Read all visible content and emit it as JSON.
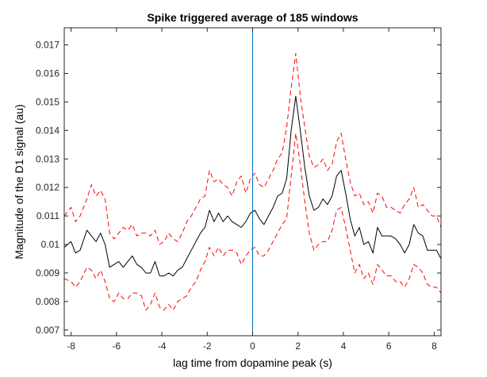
{
  "chart_data": {
    "type": "line",
    "title": "Spike triggered average of 185 windows",
    "xlabel": "lag time from dopamine peak (s)",
    "ylabel": "Magnitude of the D1 signal (au)",
    "xlim": [
      -8.3,
      8.3
    ],
    "ylim": [
      0.0068,
      0.0176
    ],
    "xticks": [
      -8,
      -6,
      -4,
      -2,
      0,
      2,
      4,
      6,
      8
    ],
    "xtick_labels": [
      "-8",
      "-6",
      "-4",
      "-2",
      "0",
      "2",
      "4",
      "6",
      "8"
    ],
    "yticks": [
      0.007,
      0.008,
      0.009,
      0.01,
      0.011,
      0.012,
      0.013,
      0.014,
      0.015,
      0.016,
      0.017
    ],
    "ytick_labels": [
      "0.007",
      "0.008",
      "0.009",
      "0.01",
      "0.011",
      "0.012",
      "0.013",
      "0.014",
      "0.015",
      "0.016",
      "0.017"
    ],
    "grid": false,
    "legend": "none",
    "vline": {
      "x": 0,
      "color": "#0072BD"
    },
    "series": [
      {
        "style": "solid",
        "color": "#000000",
        "x": [
          -8.3,
          -8.0,
          -7.8,
          -7.6,
          -7.3,
          -7.1,
          -6.9,
          -6.7,
          -6.5,
          -6.3,
          -6.1,
          -5.9,
          -5.7,
          -5.5,
          -5.3,
          -5.1,
          -4.9,
          -4.7,
          -4.5,
          -4.3,
          -4.1,
          -3.9,
          -3.7,
          -3.5,
          -3.3,
          -3.1,
          -2.9,
          -2.7,
          -2.5,
          -2.3,
          -2.1,
          -1.9,
          -1.7,
          -1.5,
          -1.3,
          -1.1,
          -0.9,
          -0.7,
          -0.5,
          -0.3,
          -0.1,
          0.1,
          0.3,
          0.5,
          0.7,
          0.9,
          1.1,
          1.3,
          1.5,
          1.7,
          1.9,
          2.1,
          2.3,
          2.5,
          2.7,
          2.9,
          3.1,
          3.3,
          3.5,
          3.7,
          3.9,
          4.1,
          4.3,
          4.5,
          4.7,
          4.9,
          5.1,
          5.3,
          5.5,
          5.7,
          5.9,
          6.1,
          6.3,
          6.5,
          6.7,
          6.9,
          7.1,
          7.3,
          7.5,
          7.7,
          7.9,
          8.1,
          8.3
        ],
        "y": [
          0.0099,
          0.0101,
          0.0097,
          0.0098,
          0.0105,
          0.0103,
          0.0101,
          0.0104,
          0.01,
          0.0092,
          0.0093,
          0.0094,
          0.0092,
          0.0094,
          0.0096,
          0.0093,
          0.0092,
          0.009,
          0.009,
          0.0094,
          0.0089,
          0.0089,
          0.009,
          0.0089,
          0.0091,
          0.0092,
          0.0095,
          0.0098,
          0.0101,
          0.0104,
          0.0106,
          0.0112,
          0.0108,
          0.0111,
          0.0108,
          0.011,
          0.0108,
          0.0107,
          0.0106,
          0.0108,
          0.0111,
          0.0112,
          0.0109,
          0.0107,
          0.011,
          0.0113,
          0.0117,
          0.0118,
          0.0123,
          0.014,
          0.0152,
          0.014,
          0.0127,
          0.0117,
          0.0112,
          0.0113,
          0.0116,
          0.0114,
          0.0117,
          0.0124,
          0.0126,
          0.0118,
          0.0109,
          0.0103,
          0.0106,
          0.01,
          0.0101,
          0.0097,
          0.0106,
          0.0103,
          0.0103,
          0.0103,
          0.0102,
          0.01,
          0.0097,
          0.01,
          0.0107,
          0.0104,
          0.0103,
          0.0098,
          0.0098,
          0.0098,
          0.0095
        ]
      },
      {
        "style": "dashed",
        "color": "#FF0000",
        "x": [
          -8.3,
          -8.0,
          -7.8,
          -7.6,
          -7.3,
          -7.1,
          -6.9,
          -6.7,
          -6.5,
          -6.3,
          -6.1,
          -5.9,
          -5.7,
          -5.5,
          -5.3,
          -5.1,
          -4.9,
          -4.7,
          -4.5,
          -4.3,
          -4.1,
          -3.9,
          -3.7,
          -3.5,
          -3.3,
          -3.1,
          -2.9,
          -2.7,
          -2.5,
          -2.3,
          -2.1,
          -1.9,
          -1.7,
          -1.5,
          -1.3,
          -1.1,
          -0.9,
          -0.7,
          -0.5,
          -0.3,
          -0.1,
          0.1,
          0.3,
          0.5,
          0.7,
          0.9,
          1.1,
          1.3,
          1.5,
          1.7,
          1.9,
          2.1,
          2.3,
          2.5,
          2.7,
          2.9,
          3.1,
          3.3,
          3.5,
          3.7,
          3.9,
          4.1,
          4.3,
          4.5,
          4.7,
          4.9,
          5.1,
          5.3,
          5.5,
          5.7,
          5.9,
          6.1,
          6.3,
          6.5,
          6.7,
          6.9,
          7.1,
          7.3,
          7.5,
          7.7,
          7.9,
          8.1,
          8.3
        ],
        "y": [
          0.011,
          0.0113,
          0.0108,
          0.011,
          0.0116,
          0.0121,
          0.0117,
          0.0119,
          0.0116,
          0.0104,
          0.0102,
          0.0104,
          0.0106,
          0.0105,
          0.0107,
          0.0103,
          0.0104,
          0.0104,
          0.0103,
          0.0105,
          0.01,
          0.0101,
          0.0104,
          0.0102,
          0.0101,
          0.0104,
          0.0108,
          0.011,
          0.0113,
          0.0116,
          0.0117,
          0.0126,
          0.0122,
          0.0123,
          0.0121,
          0.012,
          0.0117,
          0.0122,
          0.0124,
          0.0118,
          0.0123,
          0.0125,
          0.0121,
          0.012,
          0.0123,
          0.0126,
          0.013,
          0.0132,
          0.0141,
          0.0155,
          0.0167,
          0.0152,
          0.0141,
          0.0131,
          0.0127,
          0.0128,
          0.013,
          0.0126,
          0.0128,
          0.0136,
          0.0139,
          0.013,
          0.0122,
          0.0117,
          0.0118,
          0.0114,
          0.0115,
          0.0111,
          0.0118,
          0.0117,
          0.0113,
          0.0113,
          0.0112,
          0.0111,
          0.0114,
          0.0116,
          0.012,
          0.0113,
          0.0114,
          0.0112,
          0.011,
          0.011,
          0.0106
        ]
      },
      {
        "style": "dashed",
        "color": "#FF0000",
        "x": [
          -8.3,
          -8.0,
          -7.8,
          -7.6,
          -7.3,
          -7.1,
          -6.9,
          -6.7,
          -6.5,
          -6.3,
          -6.1,
          -5.9,
          -5.7,
          -5.5,
          -5.3,
          -5.1,
          -4.9,
          -4.7,
          -4.5,
          -4.3,
          -4.1,
          -3.9,
          -3.7,
          -3.5,
          -3.3,
          -3.1,
          -2.9,
          -2.7,
          -2.5,
          -2.3,
          -2.1,
          -1.9,
          -1.7,
          -1.5,
          -1.3,
          -1.1,
          -0.9,
          -0.7,
          -0.5,
          -0.3,
          -0.1,
          0.1,
          0.3,
          0.5,
          0.7,
          0.9,
          1.1,
          1.3,
          1.5,
          1.7,
          1.9,
          2.1,
          2.3,
          2.5,
          2.7,
          2.9,
          3.1,
          3.3,
          3.5,
          3.7,
          3.9,
          4.1,
          4.3,
          4.5,
          4.7,
          4.9,
          5.1,
          5.3,
          5.5,
          5.7,
          5.9,
          6.1,
          6.3,
          6.5,
          6.7,
          6.9,
          7.1,
          7.3,
          7.5,
          7.7,
          7.9,
          8.1,
          8.3
        ],
        "y": [
          0.0088,
          0.0087,
          0.0085,
          0.0087,
          0.0092,
          0.0091,
          0.0088,
          0.0091,
          0.0087,
          0.0081,
          0.008,
          0.0083,
          0.0081,
          0.0081,
          0.0083,
          0.0083,
          0.0082,
          0.0077,
          0.0079,
          0.0083,
          0.0078,
          0.0077,
          0.0079,
          0.0077,
          0.008,
          0.0081,
          0.0082,
          0.0085,
          0.0087,
          0.0091,
          0.0094,
          0.0099,
          0.0096,
          0.0099,
          0.0096,
          0.0098,
          0.0098,
          0.0097,
          0.0093,
          0.0096,
          0.0098,
          0.0099,
          0.0096,
          0.0096,
          0.0098,
          0.0101,
          0.0104,
          0.0107,
          0.0109,
          0.0124,
          0.0139,
          0.0128,
          0.0115,
          0.0104,
          0.0098,
          0.01,
          0.0101,
          0.0101,
          0.0105,
          0.0112,
          0.0113,
          0.0106,
          0.0098,
          0.009,
          0.0093,
          0.0088,
          0.009,
          0.0086,
          0.0093,
          0.0091,
          0.0089,
          0.0089,
          0.0087,
          0.0087,
          0.0085,
          0.0088,
          0.0093,
          0.0092,
          0.009,
          0.0086,
          0.0085,
          0.0085,
          0.0083
        ]
      }
    ]
  }
}
